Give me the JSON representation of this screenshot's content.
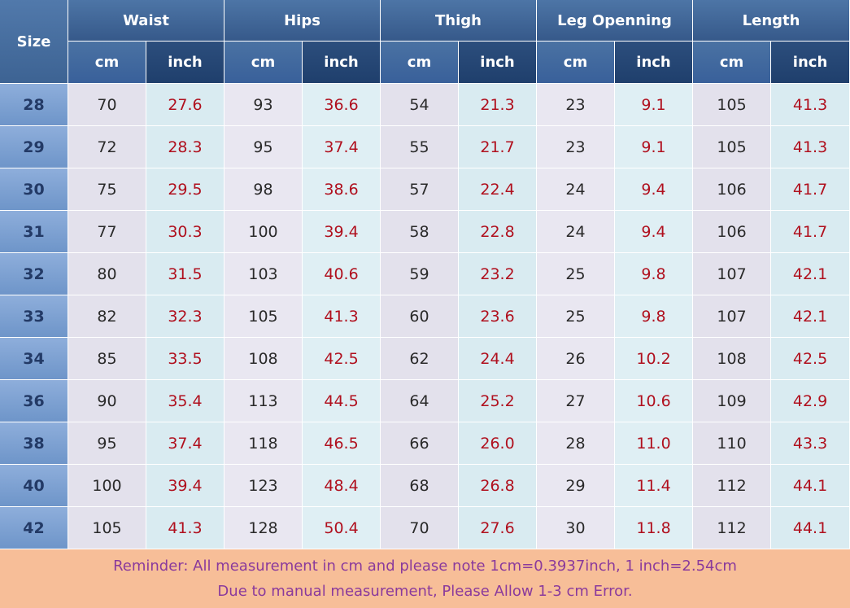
{
  "table": {
    "size_header": "Size",
    "groups": [
      "Waist",
      "Hips",
      "Thigh",
      "Leg Openning",
      "Length"
    ],
    "units": [
      "cm",
      "inch"
    ],
    "rows": [
      {
        "size": "28",
        "values": [
          "70",
          "27.6",
          "93",
          "36.6",
          "54",
          "21.3",
          "23",
          "9.1",
          "105",
          "41.3"
        ]
      },
      {
        "size": "29",
        "values": [
          "72",
          "28.3",
          "95",
          "37.4",
          "55",
          "21.7",
          "23",
          "9.1",
          "105",
          "41.3"
        ]
      },
      {
        "size": "30",
        "values": [
          "75",
          "29.5",
          "98",
          "38.6",
          "57",
          "22.4",
          "24",
          "9.4",
          "106",
          "41.7"
        ]
      },
      {
        "size": "31",
        "values": [
          "77",
          "30.3",
          "100",
          "39.4",
          "58",
          "22.8",
          "24",
          "9.4",
          "106",
          "41.7"
        ]
      },
      {
        "size": "32",
        "values": [
          "80",
          "31.5",
          "103",
          "40.6",
          "59",
          "23.2",
          "25",
          "9.8",
          "107",
          "42.1"
        ]
      },
      {
        "size": "33",
        "values": [
          "82",
          "32.3",
          "105",
          "41.3",
          "60",
          "23.6",
          "25",
          "9.8",
          "107",
          "42.1"
        ]
      },
      {
        "size": "34",
        "values": [
          "85",
          "33.5",
          "108",
          "42.5",
          "62",
          "24.4",
          "26",
          "10.2",
          "108",
          "42.5"
        ]
      },
      {
        "size": "36",
        "values": [
          "90",
          "35.4",
          "113",
          "44.5",
          "64",
          "25.2",
          "27",
          "10.6",
          "109",
          "42.9"
        ]
      },
      {
        "size": "38",
        "values": [
          "95",
          "37.4",
          "118",
          "46.5",
          "66",
          "26.0",
          "28",
          "11.0",
          "110",
          "43.3"
        ]
      },
      {
        "size": "40",
        "values": [
          "100",
          "39.4",
          "123",
          "48.4",
          "68",
          "26.8",
          "29",
          "11.4",
          "112",
          "44.1"
        ]
      },
      {
        "size": "42",
        "values": [
          "105",
          "41.3",
          "128",
          "50.4",
          "70",
          "27.6",
          "30",
          "11.8",
          "112",
          "44.1"
        ]
      }
    ]
  },
  "reminder": {
    "line1": "Reminder: All measurement in cm and please note 1cm=0.3937inch, 1 inch=2.54cm",
    "line2": "Due to manual measurement, Please Allow 1-3 cm Error."
  },
  "colors": {
    "header_blue": "#3d6393",
    "inch_header": "#1f3f6c",
    "size_column": "#7b9fd0",
    "cm_cell_bg": "#e3e1ec",
    "inch_cell_bg": "#d9ebf1",
    "inch_text": "#b0101e",
    "reminder_bg": "#f7be98",
    "reminder_text": "#8a3a9c"
  }
}
